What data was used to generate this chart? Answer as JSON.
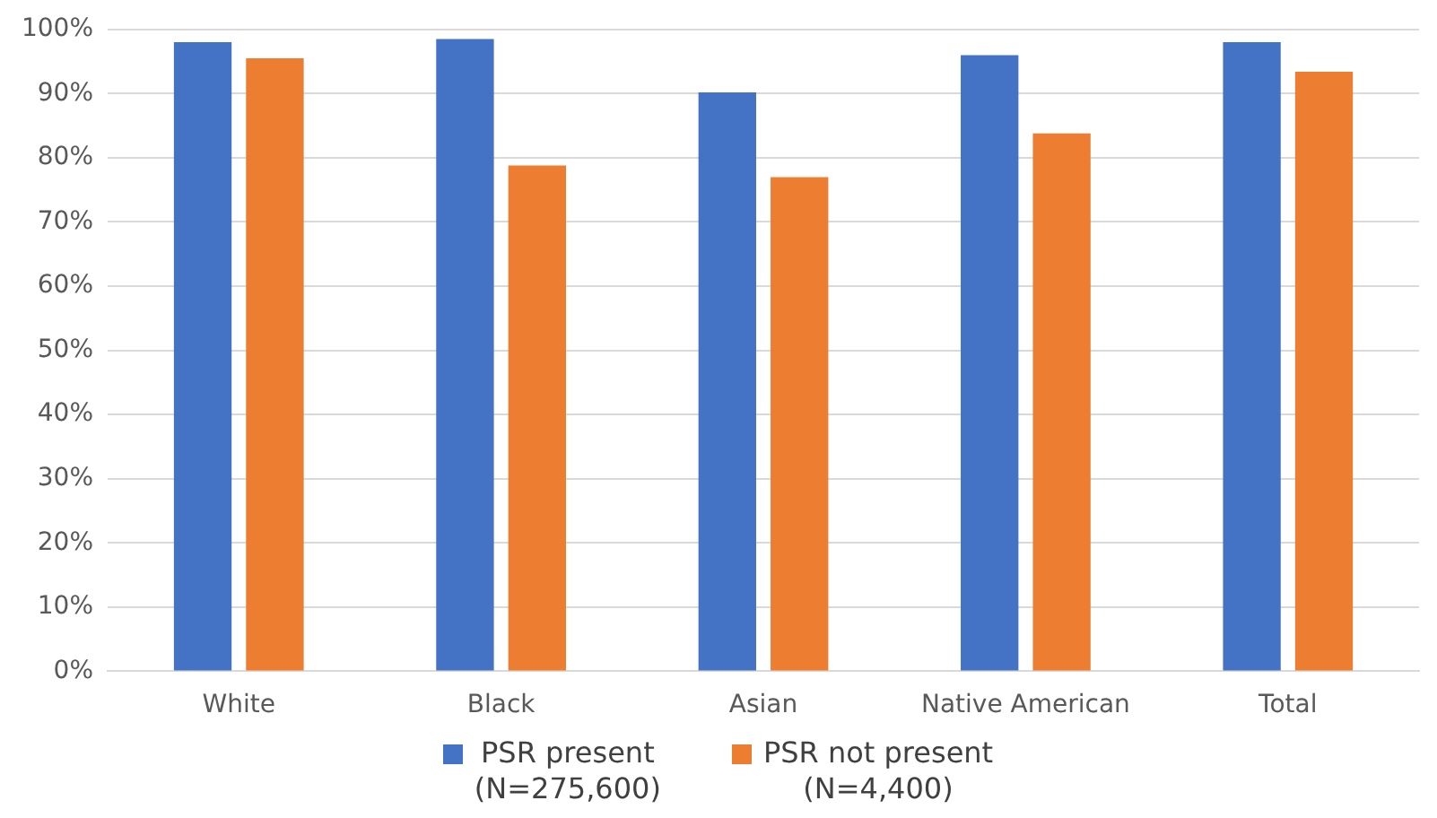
{
  "chart_data": {
    "type": "bar",
    "categories": [
      "White",
      "Black",
      "Asian",
      "Native American",
      "Total"
    ],
    "series": [
      {
        "name": "PSR  present\n(N=275,600)",
        "color": "#4472c4",
        "values": [
          98.0,
          98.5,
          90.2,
          96.0,
          98.0
        ]
      },
      {
        "name": "PSR not present\n(N=4,400)",
        "color": "#ed7d31",
        "values": [
          95.5,
          78.8,
          77.0,
          83.8,
          93.4
        ]
      }
    ],
    "ylim": [
      0,
      100
    ],
    "yticks": [
      {
        "value": 0,
        "label": "0%"
      },
      {
        "value": 10,
        "label": "10%"
      },
      {
        "value": 20,
        "label": "20%"
      },
      {
        "value": 30,
        "label": "30%"
      },
      {
        "value": 40,
        "label": "40%"
      },
      {
        "value": 50,
        "label": "50%"
      },
      {
        "value": 60,
        "label": "60%"
      },
      {
        "value": 70,
        "label": "70%"
      },
      {
        "value": 80,
        "label": "80%"
      },
      {
        "value": 90,
        "label": "90%"
      },
      {
        "value": 100,
        "label": "100%"
      }
    ],
    "grid": "y",
    "legend": "bottom"
  }
}
